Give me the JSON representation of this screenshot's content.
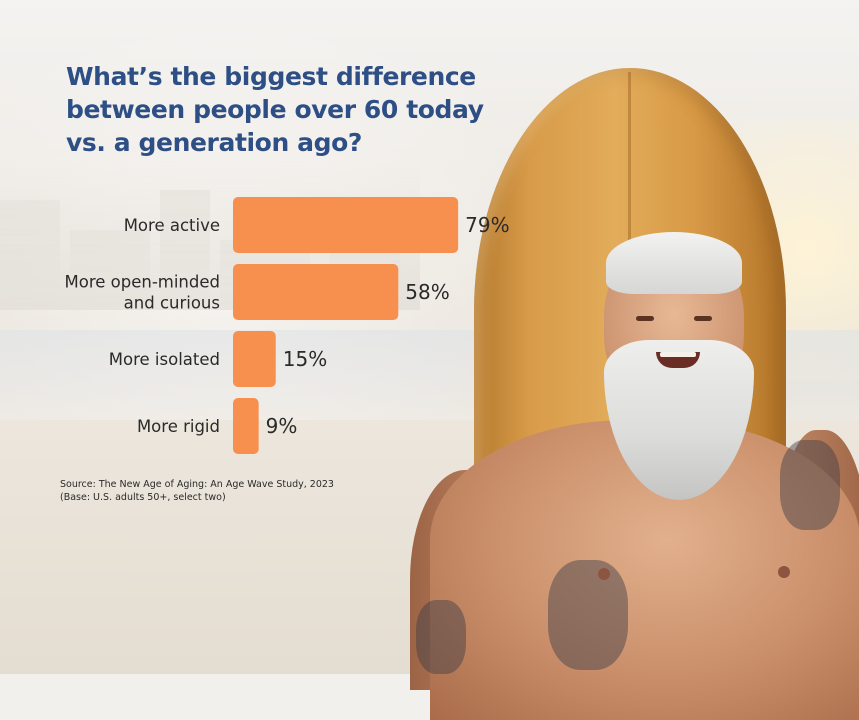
{
  "title": "What’s the biggest difference\nbetween people over 60 today\nvs. a generation ago?",
  "source_line1": "Source: The New Age of Aging: An Age Wave Study, 2023",
  "source_line2": "(Base: U.S. adults 50+, select two)",
  "colors": {
    "bar": "#f7904f",
    "title": "#2d4f86"
  },
  "chart_data": {
    "type": "bar",
    "orientation": "horizontal",
    "categories": [
      "More active",
      "More open-minded and curious",
      "More isolated",
      "More rigid"
    ],
    "category_lines": [
      [
        "More active"
      ],
      [
        "More open-minded",
        "and curious"
      ],
      [
        "More isolated"
      ],
      [
        "More rigid"
      ]
    ],
    "values": [
      79,
      58,
      15,
      9
    ],
    "value_labels": [
      "79%",
      "58%",
      "15%",
      "9%"
    ],
    "unit": "%",
    "xlim": [
      0,
      100
    ],
    "grid": false,
    "legend": "none"
  }
}
